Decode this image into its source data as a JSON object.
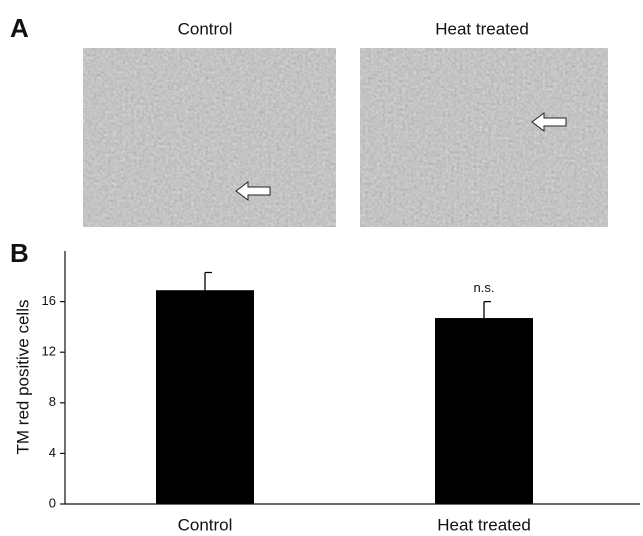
{
  "panel_labels": [
    "A",
    "B"
  ],
  "images": {
    "titles": [
      "Control",
      "Heat treated"
    ]
  },
  "chart_data": {
    "type": "bar",
    "ylabel": "TM red positive cells",
    "categories": [
      "Control",
      "Heat treated"
    ],
    "values": [
      16.9,
      14.7
    ],
    "errors": [
      1.4,
      1.3
    ],
    "color": "#000000",
    "annotation": "n.s.",
    "ylim": [
      0,
      20
    ],
    "yticks": [
      0,
      4,
      8,
      12,
      16
    ],
    "grid": false
  }
}
